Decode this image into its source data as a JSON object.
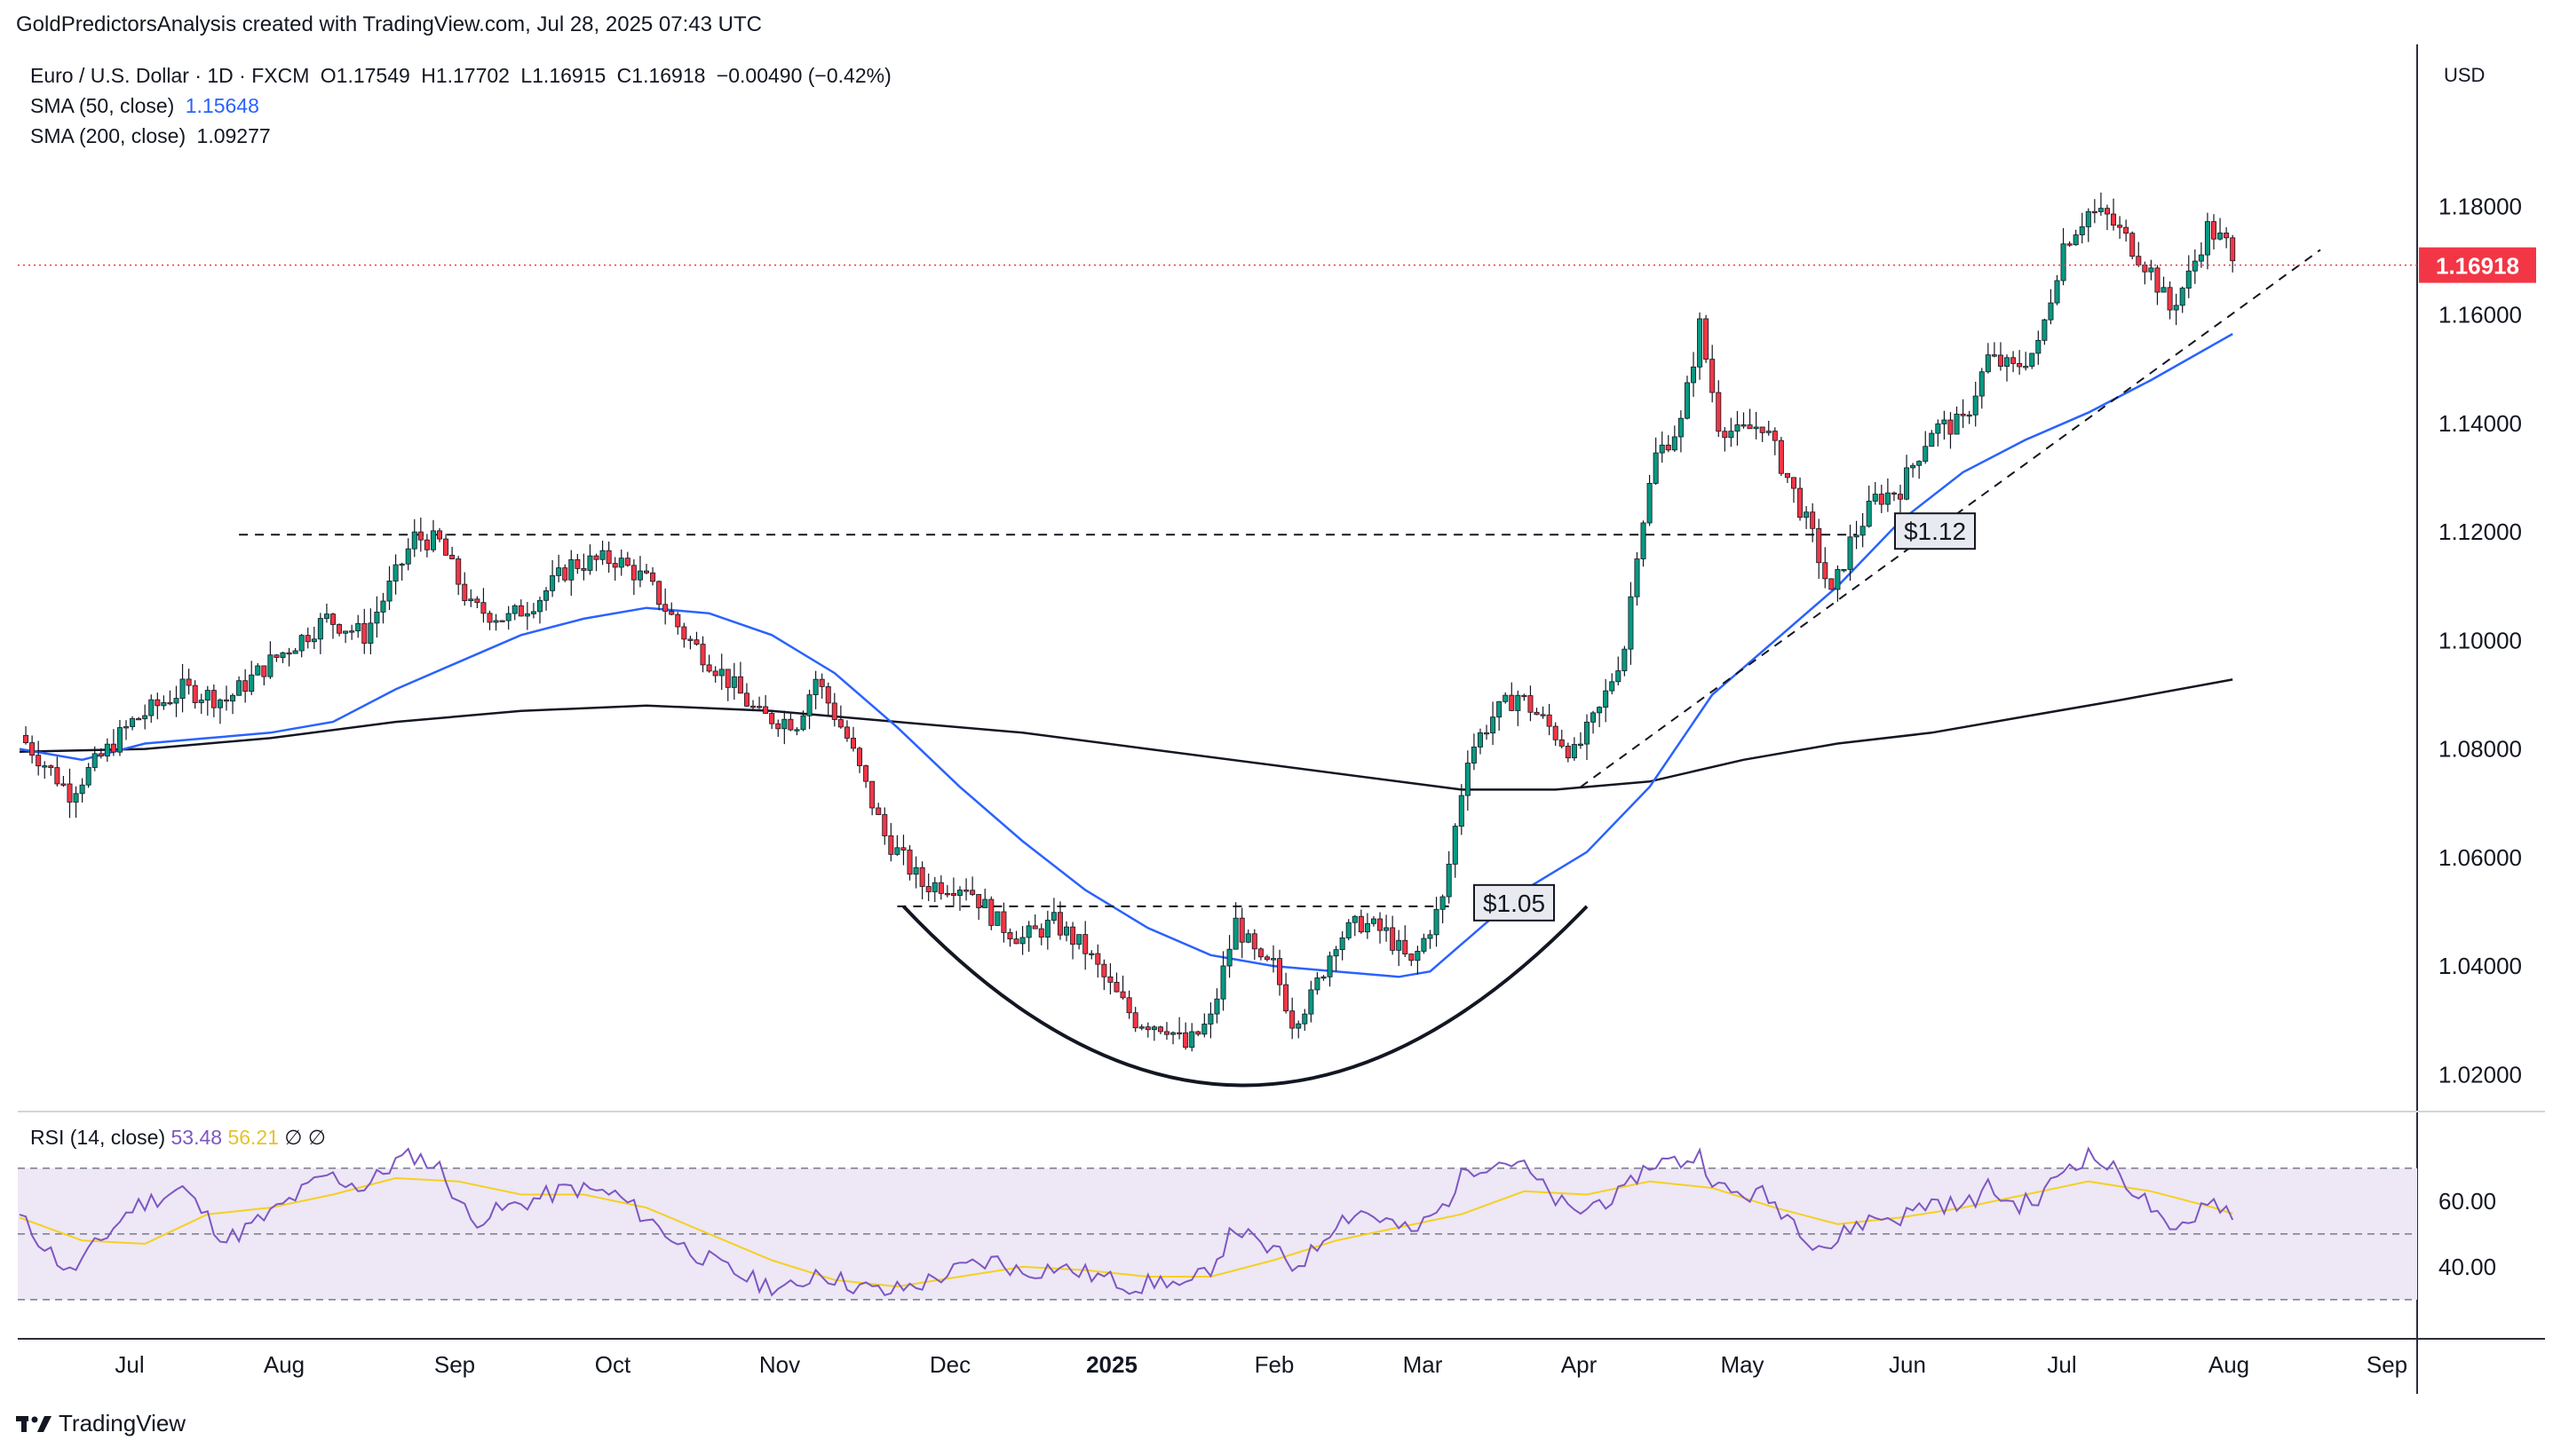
{
  "header": {
    "attribution": "GoldPredictorsAnalysis created with TradingView.com, Jul 28, 2025 07:43 UTC"
  },
  "legend": {
    "symbol": "Euro / U.S. Dollar · 1D · FXCM",
    "open": "O1.17549",
    "high": "H1.17702",
    "low": "L1.16915",
    "close": "C1.16918",
    "change": "−0.00490 (−0.42%)",
    "sma50_label": "SMA (50, close)",
    "sma50_value": "1.15648",
    "sma200_label": "SMA (200, close)",
    "sma200_value": "1.09277"
  },
  "rsi_legend": {
    "label": "RSI (14, close)",
    "rsi_value": "53.48",
    "ma_value": "56.21",
    "extra1": "∅",
    "extra2": "∅"
  },
  "currency": "USD",
  "brand": "TradingView",
  "colors": {
    "up": "#089981",
    "down": "#f23645",
    "sma50": "#2962ff",
    "sma200": "#131722",
    "rsi": "#7e57c2",
    "rsi_ma": "#f5d020",
    "rsi_band": "#ede7f6"
  },
  "chart_data": {
    "type": "candlestick",
    "title": "Euro / U.S. Dollar · 1D · FXCM",
    "y_ticks": [
      "1.18000",
      "1.16000",
      "1.14000",
      "1.12000",
      "1.10000",
      "1.08000",
      "1.06000",
      "1.04000",
      "1.02000"
    ],
    "ylim": [
      1.0135,
      1.1935
    ],
    "x_ticks": [
      "Jul",
      "Aug",
      "Sep",
      "Oct",
      "Nov",
      "Dec",
      "2025",
      "Feb",
      "Mar",
      "Apr",
      "May",
      "Jun",
      "Jul",
      "Aug",
      "Sep"
    ],
    "last_price": "1.16918",
    "last_price_value": 1.16918,
    "annotations": [
      {
        "text": "$1.12",
        "price": 1.1195
      },
      {
        "text": "$1.05",
        "price": 1.051
      }
    ],
    "price_path": [
      [
        0,
        1.0825
      ],
      [
        8,
        1.072
      ],
      [
        18,
        1.085
      ],
      [
        26,
        1.091
      ],
      [
        33,
        1.089
      ],
      [
        40,
        1.096
      ],
      [
        49,
        1.104
      ],
      [
        55,
        1.101
      ],
      [
        60,
        1.112
      ],
      [
        63,
        1.119
      ],
      [
        67,
        1.118
      ],
      [
        72,
        1.106
      ],
      [
        78,
        1.104
      ],
      [
        83,
        1.108
      ],
      [
        88,
        1.114
      ],
      [
        95,
        1.115
      ],
      [
        100,
        1.111
      ],
      [
        106,
        1.101
      ],
      [
        112,
        1.094
      ],
      [
        118,
        1.086
      ],
      [
        124,
        1.085
      ],
      [
        127,
        1.093
      ],
      [
        132,
        1.082
      ],
      [
        138,
        1.064
      ],
      [
        144,
        1.055
      ],
      [
        151,
        1.055
      ],
      [
        156,
        1.048
      ],
      [
        160,
        1.045
      ],
      [
        165,
        1.048
      ],
      [
        170,
        1.043
      ],
      [
        174,
        1.036
      ],
      [
        178,
        1.03
      ],
      [
        183,
        1.029
      ],
      [
        186,
        1.025
      ],
      [
        190,
        1.03
      ],
      [
        194,
        1.048
      ],
      [
        198,
        1.04
      ],
      [
        200,
        1.04
      ],
      [
        203,
        1.03
      ],
      [
        206,
        1.034
      ],
      [
        210,
        1.045
      ],
      [
        214,
        1.048
      ],
      [
        218,
        1.046
      ],
      [
        222,
        1.04
      ],
      [
        227,
        1.052
      ],
      [
        231,
        1.079
      ],
      [
        235,
        1.086
      ],
      [
        239,
        1.09
      ],
      [
        244,
        1.084
      ],
      [
        248,
        1.079
      ],
      [
        252,
        1.087
      ],
      [
        256,
        1.099
      ],
      [
        258,
        1.117
      ],
      [
        261,
        1.134
      ],
      [
        265,
        1.14
      ],
      [
        268,
        1.158
      ],
      [
        271,
        1.14
      ],
      [
        274,
        1.138
      ],
      [
        278,
        1.14
      ],
      [
        282,
        1.13
      ],
      [
        286,
        1.119
      ],
      [
        289,
        1.108
      ],
      [
        292,
        1.118
      ],
      [
        296,
        1.126
      ],
      [
        300,
        1.128
      ],
      [
        305,
        1.139
      ],
      [
        310,
        1.14
      ],
      [
        314,
        1.152
      ],
      [
        318,
        1.15
      ],
      [
        322,
        1.154
      ],
      [
        326,
        1.173
      ],
      [
        330,
        1.179
      ],
      [
        333,
        1.178
      ],
      [
        336,
        1.174
      ],
      [
        340,
        1.168
      ],
      [
        343,
        1.161
      ],
      [
        346,
        1.167
      ],
      [
        349,
        1.176
      ],
      [
        352,
        1.173
      ],
      [
        353,
        1.169
      ]
    ],
    "sma50": [
      [
        0,
        1.08
      ],
      [
        10,
        1.078
      ],
      [
        20,
        1.081
      ],
      [
        30,
        1.082
      ],
      [
        40,
        1.083
      ],
      [
        50,
        1.085
      ],
      [
        60,
        1.091
      ],
      [
        70,
        1.096
      ],
      [
        80,
        1.101
      ],
      [
        90,
        1.104
      ],
      [
        100,
        1.106
      ],
      [
        110,
        1.105
      ],
      [
        120,
        1.101
      ],
      [
        130,
        1.094
      ],
      [
        140,
        1.084
      ],
      [
        150,
        1.073
      ],
      [
        160,
        1.063
      ],
      [
        170,
        1.054
      ],
      [
        180,
        1.047
      ],
      [
        190,
        1.042
      ],
      [
        200,
        1.04
      ],
      [
        210,
        1.039
      ],
      [
        220,
        1.038
      ],
      [
        225,
        1.039
      ],
      [
        230,
        1.044
      ],
      [
        240,
        1.054
      ],
      [
        250,
        1.061
      ],
      [
        260,
        1.073
      ],
      [
        270,
        1.09
      ],
      [
        280,
        1.1
      ],
      [
        290,
        1.11
      ],
      [
        300,
        1.122
      ],
      [
        310,
        1.131
      ],
      [
        320,
        1.137
      ],
      [
        330,
        1.142
      ],
      [
        340,
        1.148
      ],
      [
        353,
        1.1565
      ]
    ],
    "sma200": [
      [
        0,
        1.0795
      ],
      [
        20,
        1.08
      ],
      [
        40,
        1.082
      ],
      [
        60,
        1.085
      ],
      [
        80,
        1.087
      ],
      [
        100,
        1.088
      ],
      [
        120,
        1.087
      ],
      [
        140,
        1.085
      ],
      [
        160,
        1.083
      ],
      [
        180,
        1.08
      ],
      [
        200,
        1.077
      ],
      [
        220,
        1.074
      ],
      [
        230,
        1.0725
      ],
      [
        245,
        1.0725
      ],
      [
        260,
        1.074
      ],
      [
        275,
        1.078
      ],
      [
        290,
        1.081
      ],
      [
        305,
        1.083
      ],
      [
        320,
        1.086
      ],
      [
        335,
        1.089
      ],
      [
        353,
        1.0928
      ]
    ],
    "rsi": {
      "y_ticks": [
        "60.00",
        "40.00"
      ],
      "ylim": [
        27,
        77
      ],
      "upper": 70,
      "lower": 30,
      "mid": 50,
      "rsi_path": [
        [
          0,
          55
        ],
        [
          8,
          38
        ],
        [
          18,
          58
        ],
        [
          26,
          64
        ],
        [
          33,
          48
        ],
        [
          40,
          56
        ],
        [
          49,
          68
        ],
        [
          55,
          64
        ],
        [
          60,
          72
        ],
        [
          63,
          74
        ],
        [
          67,
          70
        ],
        [
          72,
          54
        ],
        [
          78,
          58
        ],
        [
          83,
          61
        ],
        [
          88,
          64
        ],
        [
          95,
          62
        ],
        [
          100,
          55
        ],
        [
          106,
          46
        ],
        [
          112,
          40
        ],
        [
          118,
          35
        ],
        [
          124,
          33
        ],
        [
          127,
          39
        ],
        [
          132,
          35
        ],
        [
          138,
          32
        ],
        [
          144,
          35
        ],
        [
          151,
          40
        ],
        [
          156,
          42
        ],
        [
          160,
          38
        ],
        [
          165,
          40
        ],
        [
          170,
          38
        ],
        [
          174,
          36
        ],
        [
          178,
          34
        ],
        [
          183,
          36
        ],
        [
          186,
          33
        ],
        [
          190,
          40
        ],
        [
          194,
          52
        ],
        [
          198,
          46
        ],
        [
          200,
          45
        ],
        [
          203,
          40
        ],
        [
          206,
          44
        ],
        [
          210,
          54
        ],
        [
          214,
          57
        ],
        [
          218,
          54
        ],
        [
          222,
          50
        ],
        [
          227,
          58
        ],
        [
          231,
          70
        ],
        [
          235,
          72
        ],
        [
          239,
          72
        ],
        [
          244,
          62
        ],
        [
          248,
          56
        ],
        [
          252,
          60
        ],
        [
          256,
          62
        ],
        [
          258,
          68
        ],
        [
          261,
          72
        ],
        [
          265,
          72
        ],
        [
          268,
          74
        ],
        [
          271,
          64
        ],
        [
          274,
          62
        ],
        [
          278,
          62
        ],
        [
          282,
          56
        ],
        [
          286,
          48
        ],
        [
          289,
          46
        ],
        [
          292,
          52
        ],
        [
          296,
          55
        ],
        [
          300,
          55
        ],
        [
          305,
          60
        ],
        [
          310,
          58
        ],
        [
          314,
          64
        ],
        [
          318,
          59
        ],
        [
          322,
          60
        ],
        [
          326,
          70
        ],
        [
          330,
          74
        ],
        [
          333,
          71
        ],
        [
          336,
          66
        ],
        [
          340,
          58
        ],
        [
          343,
          49
        ],
        [
          346,
          54
        ],
        [
          349,
          61
        ],
        [
          352,
          58
        ],
        [
          353,
          53.5
        ]
      ],
      "ma_path": [
        [
          0,
          55
        ],
        [
          10,
          48
        ],
        [
          20,
          47
        ],
        [
          30,
          56
        ],
        [
          40,
          58
        ],
        [
          50,
          62
        ],
        [
          60,
          67
        ],
        [
          70,
          66
        ],
        [
          80,
          62
        ],
        [
          90,
          62
        ],
        [
          100,
          58
        ],
        [
          110,
          50
        ],
        [
          120,
          42
        ],
        [
          130,
          36
        ],
        [
          140,
          34
        ],
        [
          150,
          37
        ],
        [
          160,
          40
        ],
        [
          170,
          39
        ],
        [
          180,
          37
        ],
        [
          190,
          37
        ],
        [
          200,
          42
        ],
        [
          210,
          48
        ],
        [
          220,
          52
        ],
        [
          230,
          56
        ],
        [
          240,
          63
        ],
        [
          250,
          62
        ],
        [
          260,
          66
        ],
        [
          270,
          64
        ],
        [
          280,
          58
        ],
        [
          290,
          53
        ],
        [
          300,
          55
        ],
        [
          310,
          58
        ],
        [
          320,
          62
        ],
        [
          330,
          66
        ],
        [
          340,
          63
        ],
        [
          350,
          58
        ],
        [
          353,
          56.2
        ]
      ]
    }
  }
}
